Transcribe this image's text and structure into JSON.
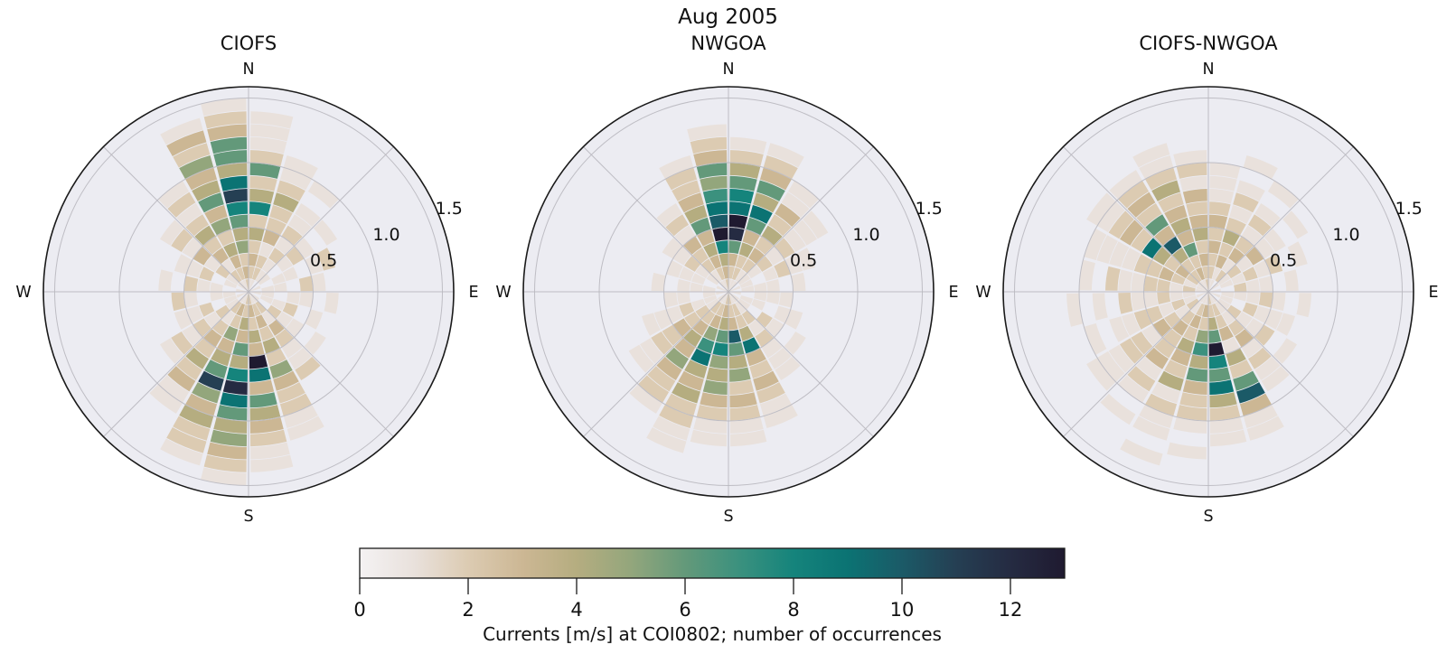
{
  "figure": {
    "title": "Aug 2005",
    "background": "#ffffff"
  },
  "style": {
    "axes_background": "#ececf2",
    "grid_color": "#b9b8bf",
    "spine_color": "#1a1a1a",
    "text_color": "#111111"
  },
  "colorbar": {
    "label": "Currents [m/s] at COI0802; number of occurrences",
    "ticks": [
      "0",
      "2",
      "4",
      "6",
      "8",
      "10",
      "12"
    ],
    "tick_values": [
      0,
      2,
      4,
      6,
      8,
      10,
      12
    ],
    "vmin": 0,
    "vmax": 13
  },
  "colormap_stops": [
    "#f4f2f3",
    "#e9e1dc",
    "#dccbb2",
    "#ccb794",
    "#b5ad80",
    "#93a67c",
    "#63997a",
    "#3b917e",
    "#15847c",
    "#0b7373",
    "#1b5a67",
    "#253f53",
    "#252b42",
    "#1f1a30"
  ],
  "chart_data": [
    {
      "type": "polar_histogram",
      "title": "CIOFS",
      "compass": {
        "n": "N",
        "e": "E",
        "s": "S",
        "w": "W"
      },
      "r_tick_labels": [
        "0.5",
        "1.0",
        "1.5"
      ],
      "r_tick_values": [
        0.5,
        1.0,
        1.5
      ],
      "r_label_azimuth_deg": 67.5,
      "r_max": 1.6,
      "dir_bin_deg": 15,
      "r_bin_size": 0.1,
      "units": "m/s",
      "value_units": "number of occurrences",
      "sectors": [
        [
          1,
          2,
          3,
          2,
          4,
          2,
          8,
          4,
          2,
          6,
          2,
          1,
          1,
          1,
          0
        ],
        [
          1,
          2,
          2,
          1,
          3,
          2,
          2,
          4,
          2,
          1,
          1,
          0,
          0,
          0,
          0
        ],
        [
          0,
          1,
          1,
          2,
          1,
          2,
          1,
          1,
          0,
          1,
          0,
          0,
          0,
          0,
          0
        ],
        [
          0,
          1,
          0,
          1,
          2,
          1,
          0,
          1,
          0,
          0,
          0,
          0,
          0,
          0,
          0
        ],
        [
          1,
          0,
          1,
          1,
          0,
          1,
          2,
          0,
          0,
          0,
          0,
          0,
          0,
          0,
          0
        ],
        [
          0,
          1,
          1,
          0,
          2,
          1,
          0,
          0,
          0,
          0,
          0,
          0,
          0,
          0,
          0
        ],
        [
          1,
          1,
          0,
          1,
          1,
          0,
          1,
          0,
          0,
          0,
          0,
          0,
          0,
          0,
          0
        ],
        [
          0,
          1,
          1,
          2,
          0,
          1,
          0,
          0,
          0,
          0,
          0,
          0,
          0,
          0,
          0
        ],
        [
          1,
          0,
          2,
          1,
          1,
          0,
          1,
          0,
          0,
          0,
          0,
          0,
          0,
          0,
          0
        ],
        [
          1,
          2,
          1,
          3,
          2,
          1,
          1,
          2,
          0,
          0,
          0,
          0,
          0,
          0,
          0
        ],
        [
          1,
          2,
          3,
          2,
          4,
          2,
          5,
          3,
          2,
          2,
          1,
          1,
          0,
          0,
          0
        ],
        [
          2,
          3,
          2,
          4,
          3,
          13,
          9,
          3,
          6,
          4,
          3,
          2,
          1,
          1,
          0
        ],
        [
          2,
          2,
          4,
          3,
          6,
          4,
          8,
          12,
          9,
          6,
          4,
          5,
          3,
          2,
          1
        ],
        [
          1,
          3,
          2,
          5,
          3,
          4,
          6,
          11,
          5,
          3,
          4,
          2,
          2,
          1,
          0
        ],
        [
          1,
          2,
          1,
          2,
          3,
          2,
          4,
          2,
          3,
          1,
          1,
          0,
          0,
          0,
          0
        ],
        [
          0,
          1,
          2,
          1,
          2,
          1,
          2,
          1,
          0,
          0,
          0,
          0,
          0,
          0,
          0
        ],
        [
          1,
          1,
          0,
          2,
          1,
          1,
          0,
          0,
          0,
          0,
          0,
          0,
          0,
          0,
          0
        ],
        [
          0,
          1,
          1,
          0,
          1,
          2,
          0,
          0,
          0,
          0,
          0,
          0,
          0,
          0,
          0
        ],
        [
          1,
          0,
          1,
          1,
          2,
          0,
          1,
          0,
          0,
          0,
          0,
          0,
          0,
          0,
          0
        ],
        [
          0,
          1,
          0,
          2,
          1,
          1,
          0,
          0,
          0,
          0,
          0,
          0,
          0,
          0,
          0
        ],
        [
          1,
          1,
          2,
          1,
          3,
          1,
          2,
          1,
          0,
          0,
          0,
          0,
          0,
          0,
          0
        ],
        [
          1,
          2,
          1,
          3,
          2,
          4,
          2,
          1,
          2,
          1,
          0,
          0,
          0,
          0,
          0
        ],
        [
          1,
          2,
          3,
          4,
          2,
          5,
          3,
          6,
          4,
          3,
          5,
          2,
          3,
          1,
          0
        ],
        [
          2,
          3,
          2,
          5,
          4,
          6,
          8,
          11,
          9,
          4,
          6,
          6,
          3,
          2,
          1
        ]
      ]
    },
    {
      "type": "polar_histogram",
      "title": "NWGOA",
      "compass": {
        "n": "N",
        "e": "E",
        "s": "S",
        "w": "W"
      },
      "r_tick_labels": [
        "0.5",
        "1.0",
        "1.5"
      ],
      "r_tick_values": [
        0.5,
        1.0,
        1.5
      ],
      "r_label_azimuth_deg": 67.5,
      "r_max": 1.6,
      "dir_bin_deg": 15,
      "r_bin_size": 0.1,
      "units": "m/s",
      "value_units": "number of occurrences",
      "sectors": [
        [
          1,
          2,
          3,
          6,
          12,
          13,
          9,
          8,
          6,
          4,
          2,
          1,
          0,
          0,
          0
        ],
        [
          1,
          2,
          2,
          4,
          3,
          6,
          9,
          4,
          6,
          3,
          2,
          1,
          0,
          0,
          0
        ],
        [
          1,
          1,
          2,
          3,
          2,
          4,
          2,
          3,
          1,
          1,
          0,
          0,
          0,
          0,
          0
        ],
        [
          0,
          1,
          1,
          2,
          1,
          2,
          1,
          1,
          1,
          0,
          0,
          0,
          0,
          0,
          0
        ],
        [
          1,
          1,
          0,
          1,
          2,
          1,
          1,
          0,
          0,
          0,
          0,
          0,
          0,
          0,
          0
        ],
        [
          0,
          1,
          1,
          1,
          0,
          1,
          0,
          0,
          0,
          0,
          0,
          0,
          0,
          0,
          0
        ],
        [
          1,
          0,
          1,
          1,
          1,
          0,
          0,
          0,
          0,
          0,
          0,
          0,
          0,
          0,
          0
        ],
        [
          0,
          1,
          1,
          0,
          1,
          1,
          0,
          0,
          0,
          0,
          0,
          0,
          0,
          0,
          0
        ],
        [
          1,
          1,
          0,
          2,
          1,
          0,
          1,
          0,
          0,
          0,
          0,
          0,
          0,
          0,
          0
        ],
        [
          1,
          1,
          2,
          1,
          2,
          1,
          1,
          1,
          0,
          0,
          0,
          0,
          0,
          0,
          0
        ],
        [
          1,
          2,
          2,
          4,
          9,
          3,
          2,
          3,
          2,
          1,
          1,
          0,
          0,
          0,
          0
        ],
        [
          2,
          2,
          3,
          10,
          6,
          4,
          5,
          2,
          3,
          2,
          1,
          1,
          0,
          0,
          0
        ],
        [
          2,
          3,
          4,
          6,
          8,
          5,
          4,
          5,
          3,
          2,
          1,
          1,
          0,
          0,
          0
        ],
        [
          1,
          2,
          3,
          5,
          7,
          9,
          4,
          3,
          4,
          2,
          2,
          1,
          1,
          0,
          0
        ],
        [
          1,
          2,
          2,
          3,
          4,
          3,
          5,
          3,
          2,
          2,
          1,
          0,
          0,
          0,
          0
        ],
        [
          1,
          1,
          2,
          2,
          3,
          2,
          2,
          1,
          1,
          0,
          0,
          0,
          0,
          0,
          0
        ],
        [
          0,
          1,
          1,
          2,
          1,
          1,
          1,
          0,
          0,
          0,
          0,
          0,
          0,
          0,
          0
        ],
        [
          1,
          1,
          0,
          1,
          1,
          0,
          0,
          0,
          0,
          0,
          0,
          0,
          0,
          0,
          0
        ],
        [
          0,
          1,
          1,
          1,
          0,
          1,
          0,
          0,
          0,
          0,
          0,
          0,
          0,
          0,
          0
        ],
        [
          1,
          0,
          1,
          1,
          1,
          0,
          0,
          0,
          0,
          0,
          0,
          0,
          0,
          0,
          0
        ],
        [
          0,
          1,
          1,
          2,
          1,
          1,
          0,
          0,
          0,
          0,
          0,
          0,
          0,
          0,
          0
        ],
        [
          1,
          1,
          2,
          2,
          3,
          1,
          2,
          1,
          0,
          0,
          0,
          0,
          0,
          0,
          0
        ],
        [
          1,
          2,
          3,
          4,
          3,
          6,
          4,
          3,
          2,
          2,
          1,
          0,
          0,
          0,
          0
        ],
        [
          2,
          3,
          4,
          8,
          13,
          10,
          9,
          7,
          5,
          6,
          3,
          2,
          1,
          0,
          0
        ]
      ]
    },
    {
      "type": "polar_histogram",
      "title": "CIOFS-NWGOA",
      "compass": {
        "n": "N",
        "e": "E",
        "s": "S",
        "w": "W"
      },
      "r_tick_labels": [
        "0.5",
        "1.0",
        "1.5"
      ],
      "r_tick_values": [
        0.5,
        1.0,
        1.5
      ],
      "r_label_azimuth_deg": 67.5,
      "r_max": 1.6,
      "dir_bin_deg": 15,
      "r_bin_size": 0.1,
      "units": "m/s",
      "value_units": "number of occurrences",
      "sectors": [
        [
          1,
          2,
          2,
          3,
          2,
          3,
          2,
          1,
          1,
          1,
          0,
          0,
          0,
          0,
          0
        ],
        [
          1,
          1,
          3,
          2,
          4,
          2,
          1,
          2,
          1,
          0,
          1,
          0,
          0,
          0,
          0
        ],
        [
          0,
          2,
          1,
          3,
          2,
          1,
          2,
          1,
          0,
          1,
          0,
          0,
          0,
          0,
          0
        ],
        [
          1,
          1,
          2,
          1,
          3,
          1,
          1,
          0,
          1,
          0,
          0,
          0,
          0,
          0,
          0
        ],
        [
          0,
          1,
          1,
          2,
          1,
          2,
          0,
          1,
          0,
          0,
          0,
          0,
          0,
          0,
          0
        ],
        [
          1,
          0,
          2,
          1,
          1,
          0,
          1,
          0,
          0,
          0,
          0,
          0,
          0,
          0,
          0
        ],
        [
          0,
          1,
          1,
          1,
          2,
          1,
          0,
          1,
          0,
          0,
          0,
          0,
          0,
          0,
          0
        ],
        [
          1,
          1,
          0,
          2,
          1,
          1,
          1,
          0,
          0,
          0,
          0,
          0,
          0,
          0,
          0
        ],
        [
          0,
          1,
          2,
          1,
          1,
          2,
          0,
          1,
          0,
          0,
          0,
          0,
          0,
          0,
          0
        ],
        [
          1,
          1,
          1,
          2,
          3,
          1,
          2,
          1,
          1,
          0,
          0,
          0,
          0,
          0,
          0
        ],
        [
          1,
          2,
          2,
          3,
          1,
          4,
          2,
          6,
          10,
          3,
          1,
          1,
          0,
          0,
          0
        ],
        [
          2,
          2,
          4,
          6,
          13,
          8,
          6,
          9,
          4,
          2,
          1,
          1,
          0,
          0,
          0
        ],
        [
          1,
          3,
          2,
          5,
          7,
          4,
          6,
          3,
          2,
          2,
          1,
          0,
          1,
          0,
          0
        ],
        [
          1,
          2,
          3,
          2,
          4,
          3,
          2,
          4,
          1,
          2,
          1,
          1,
          0,
          1,
          0
        ],
        [
          1,
          1,
          2,
          3,
          2,
          2,
          3,
          1,
          2,
          1,
          0,
          1,
          0,
          0,
          0
        ],
        [
          0,
          2,
          1,
          2,
          3,
          1,
          2,
          2,
          1,
          1,
          1,
          0,
          0,
          0,
          0
        ],
        [
          1,
          1,
          2,
          1,
          2,
          2,
          1,
          1,
          0,
          1,
          0,
          0,
          0,
          0,
          0
        ],
        [
          0,
          1,
          1,
          2,
          1,
          1,
          2,
          0,
          1,
          0,
          1,
          0,
          0,
          0,
          0
        ],
        [
          1,
          2,
          1,
          2,
          2,
          1,
          1,
          2,
          0,
          1,
          0,
          0,
          0,
          0,
          0
        ],
        [
          1,
          1,
          2,
          3,
          2,
          2,
          1,
          1,
          1,
          1,
          0,
          0,
          0,
          0,
          0
        ],
        [
          1,
          2,
          3,
          2,
          4,
          9,
          2,
          3,
          2,
          1,
          1,
          0,
          0,
          0,
          0
        ],
        [
          1,
          2,
          2,
          4,
          10,
          3,
          6,
          2,
          3,
          2,
          1,
          0,
          0,
          0,
          0
        ],
        [
          1,
          3,
          2,
          6,
          3,
          4,
          3,
          2,
          4,
          2,
          1,
          1,
          0,
          0,
          0
        ],
        [
          2,
          2,
          3,
          2,
          4,
          3,
          2,
          3,
          1,
          2,
          1,
          0,
          0,
          0,
          0
        ]
      ]
    }
  ]
}
